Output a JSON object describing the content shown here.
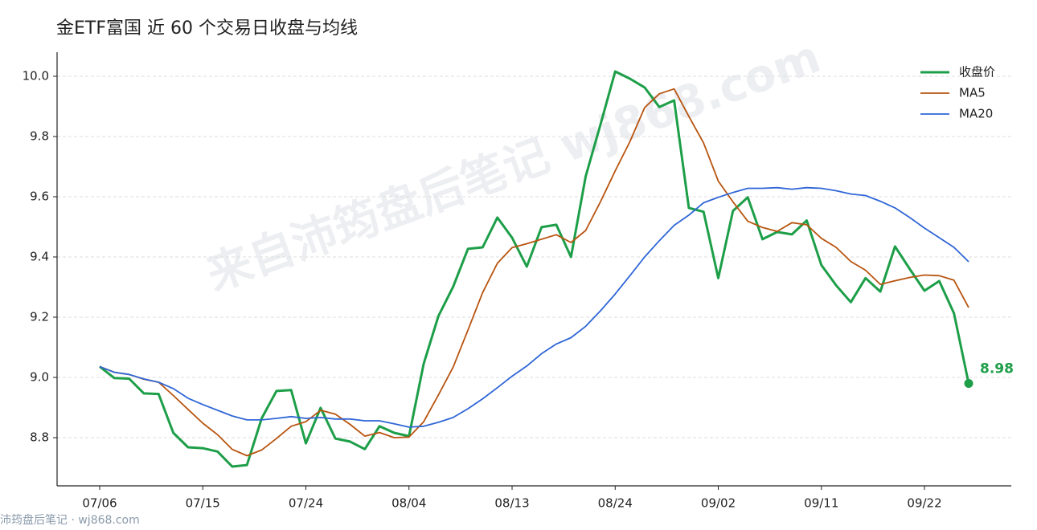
{
  "chart_data": {
    "type": "line",
    "title": "金ETF富国 近 60 个交易日收盘与均线",
    "watermark": "来自沛筠盘后笔记 wj868.com",
    "footer": "沛筠盘后笔记 · wj868.com",
    "categories": [
      "07/06",
      null,
      null,
      null,
      null,
      null,
      null,
      "07/15",
      null,
      null,
      null,
      null,
      null,
      null,
      "07/24",
      null,
      null,
      null,
      null,
      null,
      null,
      "08/04",
      null,
      null,
      null,
      null,
      null,
      null,
      "08/13",
      null,
      null,
      null,
      null,
      null,
      null,
      "08/24",
      null,
      null,
      null,
      null,
      null,
      null,
      "09/02",
      null,
      null,
      null,
      null,
      null,
      null,
      "09/11",
      null,
      null,
      null,
      null,
      null,
      null,
      "09/22",
      null,
      null,
      null
    ],
    "series": [
      {
        "name": "收盘价",
        "color": "#1d9e48",
        "values": [
          9.036,
          8.998,
          8.996,
          8.947,
          8.945,
          8.816,
          8.768,
          8.765,
          8.754,
          8.704,
          8.709,
          8.864,
          8.955,
          8.958,
          8.781,
          8.899,
          8.797,
          8.787,
          8.762,
          8.838,
          8.816,
          8.805,
          9.046,
          9.204,
          9.301,
          9.427,
          9.432,
          9.531,
          9.464,
          9.368,
          9.499,
          9.507,
          9.4,
          9.668,
          9.839,
          10.016,
          9.992,
          9.963,
          9.898,
          9.92,
          9.563,
          9.55,
          9.33,
          9.553,
          9.598,
          9.459,
          9.483,
          9.475,
          9.521,
          9.373,
          9.306,
          9.25,
          9.33,
          9.285,
          9.435,
          9.36,
          9.288,
          9.32,
          9.213,
          8.98
        ],
        "value_labels": [
          null,
          null,
          null,
          null,
          null,
          null,
          null,
          null,
          null,
          null,
          null,
          null,
          null,
          null,
          null,
          null,
          null,
          null,
          null,
          null,
          null,
          null,
          null,
          null,
          null,
          null,
          null,
          null,
          null,
          null,
          null,
          null,
          null,
          null,
          null,
          null,
          null,
          null,
          null,
          null,
          null,
          null,
          null,
          null,
          null,
          null,
          null,
          null,
          null,
          null,
          null,
          null,
          null,
          null,
          null,
          null,
          null,
          null,
          null,
          "8.98"
        ]
      },
      {
        "name": "MA5",
        "color": "#b8540f",
        "values": [
          9.036,
          9.017,
          9.01,
          8.994,
          8.984,
          8.94,
          8.894,
          8.848,
          8.81,
          8.761,
          8.74,
          8.759,
          8.797,
          8.838,
          8.853,
          8.891,
          8.878,
          8.844,
          8.805,
          8.817,
          8.8,
          8.802,
          8.853,
          8.942,
          9.034,
          9.157,
          9.282,
          9.379,
          9.431,
          9.444,
          9.459,
          9.474,
          9.448,
          9.488,
          9.583,
          9.686,
          9.783,
          9.896,
          9.942,
          9.958,
          9.867,
          9.779,
          9.652,
          9.583,
          9.519,
          9.498,
          9.485,
          9.514,
          9.507,
          9.462,
          9.432,
          9.385,
          9.356,
          9.309,
          9.321,
          9.332,
          9.34,
          9.338,
          9.323,
          9.232
        ]
      },
      {
        "name": "MA20",
        "color": "#2f66d6",
        "values": [
          9.036,
          9.017,
          9.01,
          8.995,
          8.984,
          8.963,
          8.931,
          8.91,
          8.891,
          8.872,
          8.859,
          8.859,
          8.864,
          8.87,
          8.864,
          8.867,
          8.862,
          8.862,
          8.856,
          8.856,
          8.846,
          8.835,
          8.838,
          8.851,
          8.867,
          8.896,
          8.929,
          8.966,
          9.004,
          9.038,
          9.079,
          9.111,
          9.132,
          9.17,
          9.221,
          9.277,
          9.338,
          9.4,
          9.454,
          9.505,
          9.539,
          9.58,
          9.598,
          9.614,
          9.628,
          9.628,
          9.63,
          9.625,
          9.63,
          9.628,
          9.62,
          9.609,
          9.604,
          9.585,
          9.563,
          9.531,
          9.496,
          9.464,
          9.432,
          9.384
        ]
      }
    ],
    "ylim": [
      8.64,
      10.08
    ],
    "yticks": [
      8.8,
      {
        "value": 9,
        "label": "9.0"
      },
      9.2,
      9.4,
      9.6,
      9.8,
      {
        "value": 10,
        "label": "10.0"
      }
    ],
    "grid": true,
    "legend": "upper right"
  }
}
